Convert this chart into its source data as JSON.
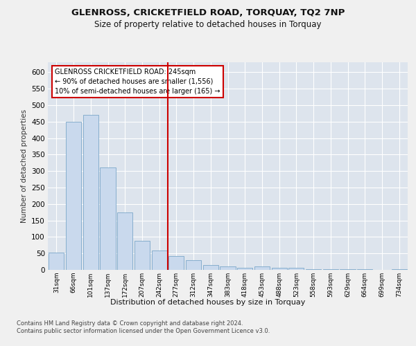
{
  "title1": "GLENROSS, CRICKETFIELD ROAD, TORQUAY, TQ2 7NP",
  "title2": "Size of property relative to detached houses in Torquay",
  "xlabel": "Distribution of detached houses by size in Torquay",
  "ylabel": "Number of detached properties",
  "categories": [
    "31sqm",
    "66sqm",
    "101sqm",
    "137sqm",
    "172sqm",
    "207sqm",
    "242sqm",
    "277sqm",
    "312sqm",
    "347sqm",
    "383sqm",
    "418sqm",
    "453sqm",
    "488sqm",
    "523sqm",
    "558sqm",
    "593sqm",
    "629sqm",
    "664sqm",
    "699sqm",
    "734sqm"
  ],
  "values": [
    52,
    450,
    470,
    310,
    175,
    88,
    58,
    43,
    30,
    15,
    10,
    7,
    10,
    6,
    7,
    2,
    2,
    2,
    3,
    1,
    3
  ],
  "bar_color": "#c9d9ed",
  "bar_edge_color": "#7aa6c8",
  "vline_x": 6.5,
  "vline_color": "#cc0000",
  "annotation_title": "GLENROSS CRICKETFIELD ROAD: 245sqm",
  "annotation_line1": "← 90% of detached houses are smaller (1,556)",
  "annotation_line2": "10% of semi-detached houses are larger (165) →",
  "annotation_box_color": "#ffffff",
  "annotation_box_edge": "#cc0000",
  "footer1": "Contains HM Land Registry data © Crown copyright and database right 2024.",
  "footer2": "Contains public sector information licensed under the Open Government Licence v3.0.",
  "ylim": [
    0,
    630
  ],
  "yticks": [
    0,
    50,
    100,
    150,
    200,
    250,
    300,
    350,
    400,
    450,
    500,
    550,
    600
  ],
  "fig_bg_color": "#f0f0f0",
  "plot_bg_color": "#dde4ed",
  "title1_fontsize": 9.5,
  "title2_fontsize": 8.5
}
